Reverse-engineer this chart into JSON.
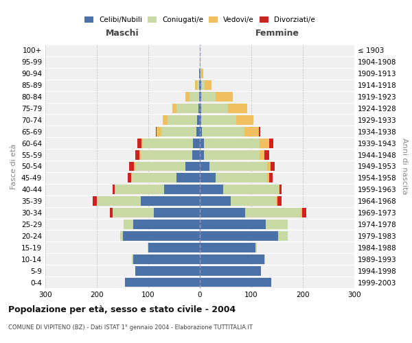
{
  "age_groups": [
    "0-4",
    "5-9",
    "10-14",
    "15-19",
    "20-24",
    "25-29",
    "30-34",
    "35-39",
    "40-44",
    "45-49",
    "50-54",
    "55-59",
    "60-64",
    "65-69",
    "70-74",
    "75-79",
    "80-84",
    "85-89",
    "90-94",
    "95-99",
    "100+"
  ],
  "birth_years": [
    "1999-2003",
    "1994-1998",
    "1989-1993",
    "1984-1988",
    "1979-1983",
    "1974-1978",
    "1969-1973",
    "1964-1968",
    "1959-1963",
    "1954-1958",
    "1949-1953",
    "1944-1948",
    "1939-1943",
    "1934-1938",
    "1929-1933",
    "1924-1928",
    "1919-1923",
    "1914-1918",
    "1909-1913",
    "1904-1908",
    "≤ 1903"
  ],
  "males": {
    "celibi": [
      145,
      125,
      130,
      100,
      150,
      130,
      90,
      115,
      70,
      45,
      28,
      15,
      13,
      7,
      5,
      3,
      2,
      2,
      1,
      0,
      0
    ],
    "coniugati": [
      0,
      0,
      2,
      2,
      5,
      18,
      80,
      85,
      95,
      88,
      98,
      100,
      98,
      68,
      58,
      42,
      18,
      4,
      1,
      0,
      0
    ],
    "vedovi": [
      0,
      0,
      0,
      0,
      0,
      0,
      0,
      0,
      0,
      0,
      2,
      2,
      2,
      9,
      9,
      9,
      8,
      3,
      0,
      0,
      0
    ],
    "divorziati": [
      0,
      0,
      0,
      0,
      0,
      0,
      5,
      8,
      4,
      7,
      9,
      9,
      8,
      2,
      0,
      0,
      0,
      0,
      0,
      0,
      0
    ]
  },
  "females": {
    "nubili": [
      138,
      118,
      125,
      108,
      152,
      128,
      88,
      60,
      45,
      30,
      18,
      8,
      8,
      4,
      3,
      2,
      2,
      2,
      1,
      0,
      0
    ],
    "coniugate": [
      0,
      0,
      2,
      3,
      18,
      42,
      108,
      88,
      108,
      100,
      112,
      108,
      108,
      82,
      68,
      52,
      28,
      7,
      2,
      0,
      0
    ],
    "vedove": [
      0,
      0,
      0,
      0,
      0,
      0,
      2,
      2,
      2,
      4,
      7,
      9,
      18,
      28,
      33,
      38,
      34,
      14,
      4,
      1,
      0
    ],
    "divorziate": [
      0,
      0,
      0,
      0,
      0,
      0,
      8,
      8,
      4,
      7,
      8,
      9,
      8,
      3,
      0,
      0,
      0,
      0,
      0,
      0,
      0
    ]
  },
  "colors": {
    "celibi": "#4a72a8",
    "coniugati": "#c8d9a4",
    "vedovi": "#f0c060",
    "divorziati": "#cc2222"
  },
  "title": "Popolazione per età, sesso e stato civile - 2004",
  "subtitle": "COMUNE DI VIPITENO (BZ) - Dati ISTAT 1° gennaio 2004 - Elaborazione TUTTITALIA.IT",
  "xlabel_left": "Maschi",
  "xlabel_right": "Femmine",
  "ylabel_left": "Fasce di età",
  "ylabel_right": "Anni di nascita",
  "xlim": 300,
  "background_color": "#ffffff",
  "plot_bg": "#f0f0f0"
}
